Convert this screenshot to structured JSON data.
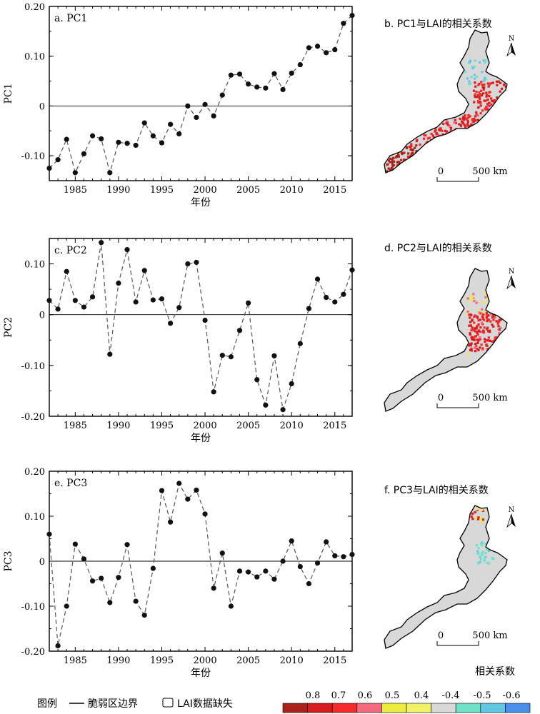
{
  "legend": {
    "title": "图例",
    "boundary_label": "脆弱区边界",
    "missing_label": "LAI数据缺失",
    "colorbar_title": "相关系数",
    "colorbar_ticks": [
      "0.8",
      "0.7",
      "0.6",
      "0.5",
      "0.4",
      "-0.4",
      "-0.5",
      "-0.6"
    ],
    "colorbar_colors": [
      "#a8231a",
      "#d71d1d",
      "#f52a2a",
      "#f46a7e",
      "#ecec3e",
      "#f2f26a",
      "#d8d8d8",
      "#70e1c8",
      "#63c6e3",
      "#4a8fe8"
    ]
  },
  "chart_data": [
    {
      "type": "line",
      "title": "a. PC1",
      "xlabel": "年份",
      "ylabel": "PC1",
      "xlim": [
        1982,
        2017
      ],
      "ylim": [
        -0.15,
        0.2
      ],
      "xticks": [
        "1985",
        "1990",
        "1995",
        "2000",
        "2005",
        "2010",
        "2015"
      ],
      "yticks": [
        "0.20",
        "0.10",
        "0",
        "-0.10"
      ],
      "ytick_values": [
        0.2,
        0.1,
        0,
        -0.1
      ],
      "x": [
        1982,
        1983,
        1984,
        1985,
        1986,
        1987,
        1988,
        1989,
        1990,
        1991,
        1992,
        1993,
        1994,
        1995,
        1996,
        1997,
        1998,
        1999,
        2000,
        2001,
        2002,
        2003,
        2004,
        2005,
        2006,
        2007,
        2008,
        2009,
        2010,
        2011,
        2012,
        2013,
        2014,
        2015,
        2016,
        2017
      ],
      "y": [
        -0.125,
        -0.108,
        -0.067,
        -0.134,
        -0.096,
        -0.06,
        -0.066,
        -0.134,
        -0.073,
        -0.075,
        -0.079,
        -0.034,
        -0.06,
        -0.074,
        -0.037,
        -0.056,
        0.0,
        -0.023,
        0.003,
        -0.02,
        0.022,
        0.062,
        0.064,
        0.044,
        0.038,
        0.036,
        0.065,
        0.033,
        0.066,
        0.083,
        0.117,
        0.12,
        0.107,
        0.113,
        0.166,
        0.182
      ]
    },
    {
      "type": "line",
      "title": "c. PC2",
      "xlabel": "年份",
      "ylabel": "PC2",
      "xlim": [
        1982,
        2017
      ],
      "ylim": [
        -0.2,
        0.15
      ],
      "xticks": [
        "1985",
        "1990",
        "1995",
        "2000",
        "2005",
        "2010",
        "2015"
      ],
      "yticks": [
        "0.10",
        "0",
        "-0.10",
        "-0.20"
      ],
      "ytick_values": [
        0.1,
        0,
        -0.1,
        -0.2
      ],
      "x": [
        1982,
        1983,
        1984,
        1985,
        1986,
        1987,
        1988,
        1989,
        1990,
        1991,
        1992,
        1993,
        1994,
        1995,
        1996,
        1997,
        1998,
        1999,
        2000,
        2001,
        2002,
        2003,
        2004,
        2005,
        2006,
        2007,
        2008,
        2009,
        2010,
        2011,
        2012,
        2013,
        2014,
        2015,
        2016,
        2017
      ],
      "y": [
        0.028,
        0.011,
        0.085,
        0.028,
        0.015,
        0.035,
        0.142,
        -0.078,
        0.062,
        0.128,
        0.025,
        0.087,
        0.029,
        0.031,
        -0.017,
        0.014,
        0.1,
        0.103,
        -0.011,
        -0.152,
        -0.08,
        -0.083,
        -0.031,
        0.023,
        -0.128,
        -0.178,
        -0.081,
        -0.187,
        -0.136,
        -0.057,
        0.012,
        0.07,
        0.034,
        0.025,
        0.04,
        0.088
      ]
    },
    {
      "type": "line",
      "title": "e. PC3",
      "xlabel": "年份",
      "ylabel": "PC3",
      "xlim": [
        1982,
        2017
      ],
      "ylim": [
        -0.2,
        0.2
      ],
      "xticks": [
        "1985",
        "1990",
        "1995",
        "2000",
        "2005",
        "2010",
        "2015"
      ],
      "yticks": [
        "0.20",
        "0.10",
        "0",
        "-0.10",
        "-0.20"
      ],
      "ytick_values": [
        0.2,
        0.1,
        0,
        -0.1,
        -0.2
      ],
      "x": [
        1982,
        1983,
        1984,
        1985,
        1986,
        1987,
        1988,
        1989,
        1990,
        1991,
        1992,
        1993,
        1994,
        1995,
        1996,
        1997,
        1998,
        1999,
        2000,
        2001,
        2002,
        2003,
        2004,
        2005,
        2006,
        2007,
        2008,
        2009,
        2010,
        2011,
        2012,
        2013,
        2014,
        2015,
        2016,
        2017
      ],
      "y": [
        0.06,
        -0.188,
        -0.1,
        0.038,
        0.005,
        -0.044,
        -0.038,
        -0.092,
        -0.036,
        0.037,
        -0.089,
        -0.12,
        -0.016,
        0.157,
        0.087,
        0.173,
        0.138,
        0.158,
        0.105,
        -0.06,
        0.018,
        -0.1,
        -0.022,
        -0.024,
        -0.035,
        -0.022,
        -0.04,
        0.0,
        0.045,
        -0.012,
        -0.05,
        -0.004,
        0.043,
        0.012,
        0.01,
        0.015
      ]
    }
  ],
  "maps": [
    {
      "title": "b. PC1与LAI的相关系数",
      "north": "N",
      "scale_zero": "0",
      "scale_label": "500 km",
      "variant": "pc1"
    },
    {
      "title": "d. PC2与LAI的相关系数",
      "north": "N",
      "scale_zero": "0",
      "scale_label": "500 km",
      "variant": "pc2"
    },
    {
      "title": "f. PC3与LAI的相关系数",
      "north": "N",
      "scale_zero": "0",
      "scale_label": "500 km",
      "variant": "pc3"
    }
  ]
}
